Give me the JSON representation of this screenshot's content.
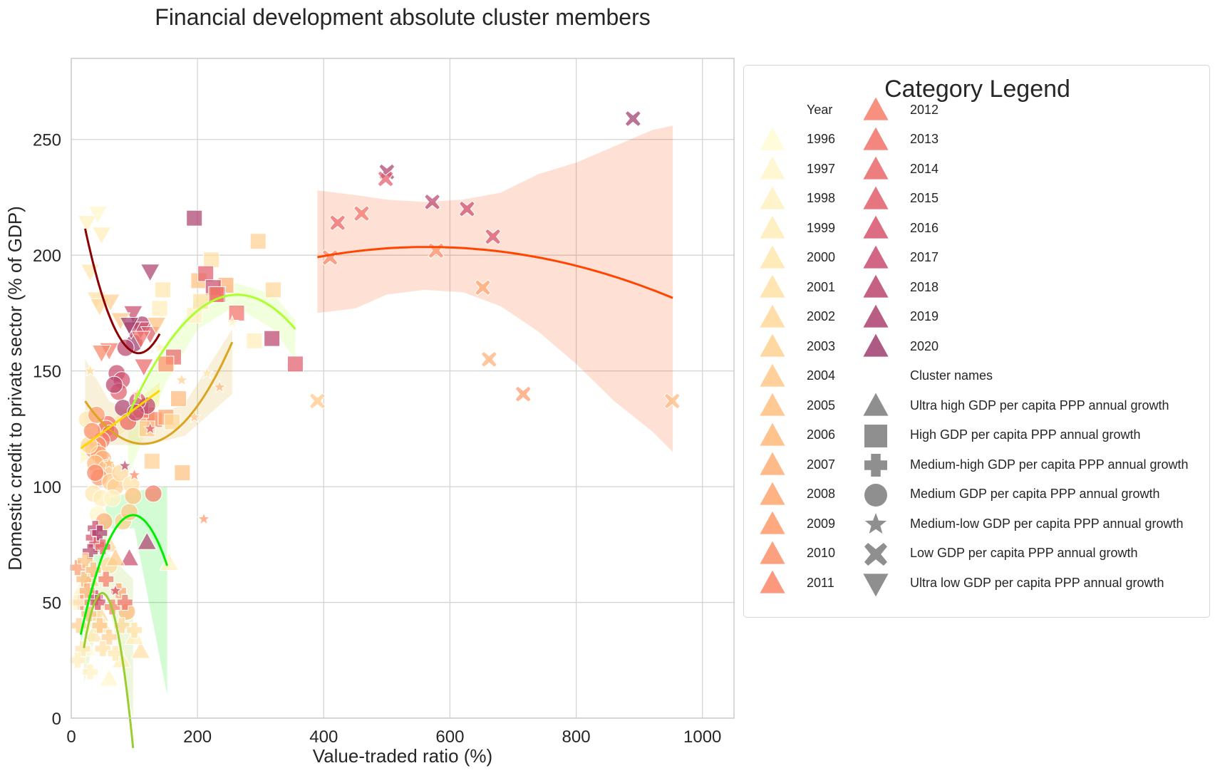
{
  "chart_data": {
    "type": "scatter",
    "title": "Financial development absolute cluster members",
    "xlabel": "Value-traded ratio (%)",
    "ylabel": "Domestic credit to private sector (% of GDP)",
    "xlim": [
      0,
      1050
    ],
    "ylim": [
      0,
      285
    ],
    "xticks": [
      0,
      200,
      400,
      600,
      800,
      1000
    ],
    "yticks": [
      0,
      50,
      100,
      150,
      200,
      250
    ],
    "grid": true,
    "legend": {
      "title": "Category Legend",
      "placement": "outside right",
      "year_header": "Year",
      "cluster_header": "Cluster names",
      "years": [
        "1996",
        "1997",
        "1998",
        "1999",
        "2000",
        "2001",
        "2002",
        "2003",
        "2004",
        "2005",
        "2006",
        "2007",
        "2008",
        "2009",
        "2010",
        "2011",
        "2012",
        "2013",
        "2014",
        "2015",
        "2016",
        "2017",
        "2018",
        "2019",
        "2020"
      ],
      "year_colors": [
        "#fffbd6",
        "#fff6cc",
        "#fff1c2",
        "#ffedb8",
        "#ffe7ae",
        "#ffe0a4",
        "#ffd89a",
        "#ffd091",
        "#ffc888",
        "#ffc080",
        "#ffb87a",
        "#ffae74",
        "#ffa46e",
        "#fe9a6a",
        "#fc9068",
        "#fa8667",
        "#f67c67",
        "#f17168",
        "#ea6769",
        "#e15d6b",
        "#d6536d",
        "#c94c6e",
        "#bb466f",
        "#ad416f",
        "#9f3d6e"
      ],
      "clusters": [
        {
          "name": "Ultra high GDP per capita PPP annual growth",
          "marker": "triangle-up-icon"
        },
        {
          "name": "High GDP per capita PPP annual growth",
          "marker": "square-icon"
        },
        {
          "name": "Medium-high GDP per capita PPP annual growth",
          "marker": "plus-icon"
        },
        {
          "name": "Medium GDP per capita PPP annual growth",
          "marker": "circle-icon"
        },
        {
          "name": "Medium-low GDP per capita PPP annual growth",
          "marker": "star-icon"
        },
        {
          "name": "Low GDP per capita PPP annual growth",
          "marker": "x-icon"
        },
        {
          "name": "Ultra low GDP per capita PPP annual growth",
          "marker": "triangle-down-icon"
        }
      ]
    },
    "series": [
      {
        "marker": "x",
        "points": [
          [
            890,
            259
          ],
          [
            500,
            236
          ],
          [
            498,
            233
          ],
          [
            572,
            223
          ],
          [
            627,
            220
          ],
          [
            460,
            218
          ],
          [
            422,
            214
          ],
          [
            668,
            208
          ],
          [
            410,
            199
          ],
          [
            578,
            202
          ],
          [
            652,
            186
          ],
          [
            662,
            155
          ],
          [
            716,
            140
          ],
          [
            952,
            137
          ],
          [
            390,
            137
          ]
        ],
        "colors": [
          "#9f3d6e",
          "#ad416f",
          "#e15d6b",
          "#bb466f",
          "#c94c6e",
          "#f17168",
          "#ea6769",
          "#d6536d",
          "#fa8667",
          "#fc9068",
          "#ffa46e",
          "#ffae74",
          "#fe9a6a",
          "#ffb87a",
          "#ffc888"
        ]
      },
      {
        "marker": "square",
        "points": [
          [
            195,
            216
          ],
          [
            296,
            206
          ],
          [
            222,
            198
          ],
          [
            202,
            189
          ],
          [
            213,
            192
          ],
          [
            245,
            187
          ],
          [
            225,
            186
          ],
          [
            232,
            183
          ],
          [
            320,
            185
          ],
          [
            262,
            175
          ],
          [
            318,
            164
          ],
          [
            355,
            153
          ],
          [
            162,
            156
          ],
          [
            145,
            185
          ],
          [
            140,
            177
          ],
          [
            230,
            183
          ],
          [
            170,
            138
          ],
          [
            120,
            131
          ],
          [
            132,
            129
          ],
          [
            150,
            130
          ],
          [
            176,
            106
          ],
          [
            128,
            111
          ],
          [
            120,
            125
          ],
          [
            195,
            174
          ],
          [
            205,
            180
          ],
          [
            290,
            163
          ],
          [
            150,
            153
          ],
          [
            160,
            128
          ],
          [
            110,
            133
          ]
        ],
        "colors": [
          "#ad416f",
          "#ffd091",
          "#ffe0a4",
          "#ffc080",
          "#e15d6b",
          "#ffae74",
          "#c94c6e",
          "#d6536d",
          "#ffd89a",
          "#f17168",
          "#bb466f",
          "#e15d6b",
          "#ea6769",
          "#ffe7ae",
          "#ffedb8",
          "#f67c67",
          "#ffb87a",
          "#fe9a6a",
          "#fa8667",
          "#ffa46e",
          "#ffc080",
          "#ffd091",
          "#ffc888",
          "#fff1c2",
          "#ffe0a4",
          "#ffedb8",
          "#fc9068",
          "#ffd89a",
          "#f17168"
        ]
      },
      {
        "marker": "circle",
        "points": [
          [
            72,
            149
          ],
          [
            80,
            146
          ],
          [
            75,
            141
          ],
          [
            68,
            144
          ],
          [
            82,
            134
          ],
          [
            58,
            127
          ],
          [
            55,
            125
          ],
          [
            62,
            123
          ],
          [
            48,
            120
          ],
          [
            42,
            118
          ],
          [
            35,
            116
          ],
          [
            44,
            114
          ],
          [
            50,
            112
          ],
          [
            38,
            110
          ],
          [
            56,
            108
          ],
          [
            44,
            104
          ],
          [
            62,
            102
          ],
          [
            70,
            100
          ],
          [
            78,
            106
          ],
          [
            95,
            101
          ],
          [
            35,
            97
          ],
          [
            48,
            95
          ],
          [
            65,
            95
          ],
          [
            42,
            88
          ],
          [
            82,
            85
          ],
          [
            92,
            89
          ],
          [
            98,
            96
          ],
          [
            25,
            129
          ],
          [
            28,
            118
          ],
          [
            60,
            66
          ],
          [
            88,
            46
          ],
          [
            130,
            97
          ],
          [
            120,
            135
          ],
          [
            90,
            128
          ],
          [
            100,
            162
          ],
          [
            105,
            137
          ],
          [
            102,
            132
          ],
          [
            38,
            106
          ],
          [
            52,
            85
          ],
          [
            112,
            170
          ],
          [
            86,
            160
          ],
          [
            40,
            131
          ],
          [
            33,
            124
          ]
        ],
        "colors": [
          "#c94c6e",
          "#d6536d",
          "#e15d6b",
          "#bb466f",
          "#ad416f",
          "#f17168",
          "#fa8667",
          "#ea6769",
          "#f67c67",
          "#fc9068",
          "#fe9a6a",
          "#ffa46e",
          "#ffae74",
          "#ffb87a",
          "#ffc080",
          "#ff9a6a",
          "#ffc888",
          "#ffd091",
          "#ffd89a",
          "#ffe0a4",
          "#ffe7ae",
          "#ffedb8",
          "#fff1c2",
          "#fff6cc",
          "#ffd091",
          "#ffc888",
          "#ffc080",
          "#ffe7ae",
          "#ffd89a",
          "#ffd89a",
          "#ffb87a",
          "#f67c67",
          "#bb466f",
          "#ea6769",
          "#9f3d6e",
          "#d6536d",
          "#c94c6e",
          "#fa8667",
          "#ffae74",
          "#ad416f",
          "#bb466f",
          "#fe9a6a",
          "#fc9068"
        ]
      },
      {
        "marker": "triangle-down",
        "points": [
          [
            25,
            214
          ],
          [
            42,
            218
          ],
          [
            48,
            209
          ],
          [
            30,
            193
          ],
          [
            125,
            193
          ],
          [
            98,
            175
          ],
          [
            40,
            181
          ],
          [
            45,
            178
          ],
          [
            110,
            168
          ],
          [
            125,
            166
          ],
          [
            60,
            159
          ],
          [
            48,
            158
          ],
          [
            115,
            152
          ],
          [
            95,
            168
          ],
          [
            110,
            164
          ],
          [
            78,
            172
          ],
          [
            135,
            170
          ],
          [
            62,
            180
          ],
          [
            92,
            170
          ]
        ],
        "colors": [
          "#fff1c2",
          "#fff6cc",
          "#ffedb8",
          "#ffe7ae",
          "#ad416f",
          "#c94c6e",
          "#ffe0a4",
          "#ffd89a",
          "#d6536d",
          "#e15d6b",
          "#f67c67",
          "#fa8667",
          "#ea6769",
          "#bb466f",
          "#f17168",
          "#ffc888",
          "#ffc080",
          "#ffd091",
          "#9f3d6e"
        ]
      },
      {
        "marker": "triangle-up",
        "points": [
          [
            120,
            76
          ],
          [
            92,
            69
          ],
          [
            155,
            67
          ],
          [
            60,
            75
          ],
          [
            40,
            50
          ],
          [
            60,
            17
          ],
          [
            80,
            25
          ],
          [
            110,
            29
          ],
          [
            30,
            60
          ],
          [
            15,
            55
          ],
          [
            20,
            40
          ],
          [
            35,
            36
          ],
          [
            45,
            45
          ],
          [
            70,
            69
          ],
          [
            50,
            40
          ],
          [
            25,
            30
          ],
          [
            100,
            35
          ]
        ],
        "colors": [
          "#ad416f",
          "#c94c6e",
          "#fff1c2",
          "#ffd89a",
          "#ffe7ae",
          "#fff6cc",
          "#ffedb8",
          "#ffe0a4",
          "#ffd091",
          "#fff1c2",
          "#fff6cc",
          "#ffe7ae",
          "#ffd89a",
          "#ffc888",
          "#ffe0a4",
          "#fffbd6",
          "#ffedb8"
        ]
      },
      {
        "marker": "plus",
        "points": [
          [
            38,
            82
          ],
          [
            35,
            78
          ],
          [
            40,
            75
          ],
          [
            30,
            72
          ],
          [
            45,
            80
          ],
          [
            50,
            74
          ],
          [
            38,
            52
          ],
          [
            42,
            50
          ],
          [
            20,
            60
          ],
          [
            25,
            55
          ],
          [
            10,
            65
          ],
          [
            15,
            50
          ],
          [
            28,
            45
          ],
          [
            45,
            40
          ],
          [
            60,
            35
          ],
          [
            75,
            55
          ],
          [
            80,
            40
          ],
          [
            100,
            38
          ],
          [
            18,
            30
          ],
          [
            10,
            25
          ],
          [
            30,
            20
          ],
          [
            12,
            40
          ],
          [
            55,
            60
          ],
          [
            65,
            48
          ],
          [
            22,
            68
          ],
          [
            8,
            50
          ],
          [
            35,
            64
          ],
          [
            50,
            30
          ],
          [
            70,
            28
          ],
          [
            85,
            50
          ]
        ],
        "colors": [
          "#c94c6e",
          "#d6536d",
          "#e15d6b",
          "#bb466f",
          "#ad416f",
          "#ea6769",
          "#c94c6e",
          "#d6536d",
          "#ffb87a",
          "#ffae74",
          "#fe9a6a",
          "#fc9068",
          "#ffc080",
          "#ffc888",
          "#ffd091",
          "#ffa46e",
          "#ffd89a",
          "#ffe0a4",
          "#ffe7ae",
          "#ffedb8",
          "#fff1c2",
          "#ffd091",
          "#f67c67",
          "#fa8667",
          "#ffc080",
          "#fff6cc",
          "#ffb87a",
          "#ffe0a4",
          "#ffe7ae",
          "#f17168"
        ]
      },
      {
        "marker": "star",
        "points": [
          [
            210,
            86
          ],
          [
            235,
            143
          ],
          [
            215,
            149
          ],
          [
            85,
            109
          ],
          [
            100,
            105
          ],
          [
            175,
            146
          ],
          [
            255,
            171
          ],
          [
            125,
            125
          ],
          [
            60,
            110
          ],
          [
            70,
            55
          ],
          [
            30,
            150
          ],
          [
            105,
            140
          ],
          [
            140,
            160
          ],
          [
            195,
            130
          ]
        ],
        "colors": [
          "#fe9a6a",
          "#ffb87a",
          "#ffe7ae",
          "#bb466f",
          "#fa8667",
          "#ffd091",
          "#fff1c2",
          "#e15d6b",
          "#ffc080",
          "#d6536d",
          "#ffe0a4",
          "#ffd89a",
          "#ffedb8",
          "#ffc888"
        ]
      }
    ],
    "fit_curves": [
      {
        "color": "#ff4500",
        "x": [
          390,
          953
        ],
        "coef": [
          157.3216,
          0.16393,
          -0.00014536
        ],
        "band": [
          [
            390,
            175,
            228
          ],
          [
            450,
            177,
            226
          ],
          [
            500,
            183,
            224
          ],
          [
            560,
            185,
            223
          ],
          [
            620,
            184,
            224
          ],
          [
            680,
            178,
            227
          ],
          [
            740,
            167,
            235
          ],
          [
            800,
            153,
            240
          ],
          [
            860,
            137,
            247
          ],
          [
            920,
            124,
            254
          ],
          [
            953,
            115,
            256
          ]
        ]
      },
      {
        "color": "#8b0000",
        "x": [
          22,
          140
        ],
        "coef": [
          243.0,
          -1.6,
          0.0075
        ],
        "band": []
      },
      {
        "color": "#adff2f",
        "x": [
          90,
          355
        ],
        "coef": [
          62.0,
          0.92,
          -0.00175
        ],
        "band": [
          [
            90,
            105,
            130
          ],
          [
            150,
            145,
            160
          ],
          [
            200,
            168,
            182
          ],
          [
            260,
            178,
            188
          ],
          [
            320,
            168,
            183
          ],
          [
            355,
            155,
            172
          ]
        ]
      },
      {
        "color": "#daa520",
        "x": [
          22,
          255
        ],
        "coef": [
          146.9,
          -0.5,
          0.0022
        ],
        "band": [
          [
            22,
            122,
            155
          ],
          [
            60,
            118,
            137
          ],
          [
            120,
            118,
            129
          ],
          [
            180,
            122,
            136
          ],
          [
            255,
            140,
            168
          ]
        ]
      },
      {
        "color": "#ffd700",
        "x": [
          15,
          140
        ],
        "coef": [
          113.5,
          0.2,
          0.0
        ],
        "band": [
          [
            15,
            110,
            118
          ],
          [
            140,
            135,
            145
          ]
        ]
      },
      {
        "color": "#00ee00",
        "x": [
          15,
          152
        ],
        "coef": [
          15.7,
          1.47,
          -0.0075
        ],
        "band": [
          [
            15,
            32,
            60
          ],
          [
            60,
            82,
            95
          ],
          [
            100,
            82,
            98
          ],
          [
            152,
            10,
            100
          ]
        ]
      },
      {
        "color": "#9acd32",
        "x": [
          20,
          98
        ],
        "coef": [
          -13.5,
          2.75,
          -0.028
        ],
        "band": [
          [
            20,
            15,
            50
          ],
          [
            55,
            55,
            72
          ],
          [
            98,
            -5,
            60
          ]
        ]
      }
    ]
  }
}
